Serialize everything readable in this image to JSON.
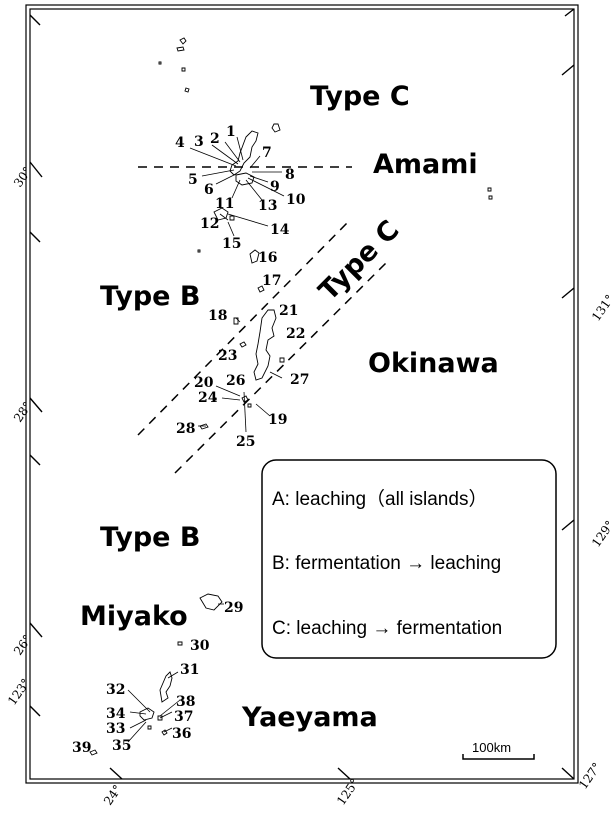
{
  "regions": {
    "amami": "Amami",
    "okinawa": "Okinawa",
    "miyako": "Miyako",
    "yaeyama": "Yaeyama"
  },
  "zones": {
    "type_c_top": "Type C",
    "type_c_diag": "Type C",
    "type_b_mid": "Type B",
    "type_b_low": "Type B"
  },
  "legend": {
    "a": "A: leaching（all islands）",
    "b": "B: fermentation → leaching",
    "c": "C: leaching → fermentation"
  },
  "scale_bar": {
    "label": "100km"
  },
  "graticule": {
    "lat_30": "30°",
    "lat_28": "28°",
    "lat_26": "26°",
    "lat_123": "123°",
    "lon_24": "24°",
    "lon_125": "125°",
    "lon_127": "127°",
    "lon_129": "129°",
    "lon_131": "131°"
  },
  "island_numbers": [
    "1",
    "2",
    "3",
    "4",
    "5",
    "6",
    "7",
    "8",
    "9",
    "10",
    "11",
    "12",
    "13",
    "14",
    "15",
    "16",
    "17",
    "18",
    "19",
    "20",
    "21",
    "22",
    "23",
    "24",
    "25",
    "26",
    "27",
    "28",
    "29",
    "30",
    "31",
    "32",
    "33",
    "34",
    "35",
    "36",
    "37",
    "38",
    "39"
  ]
}
